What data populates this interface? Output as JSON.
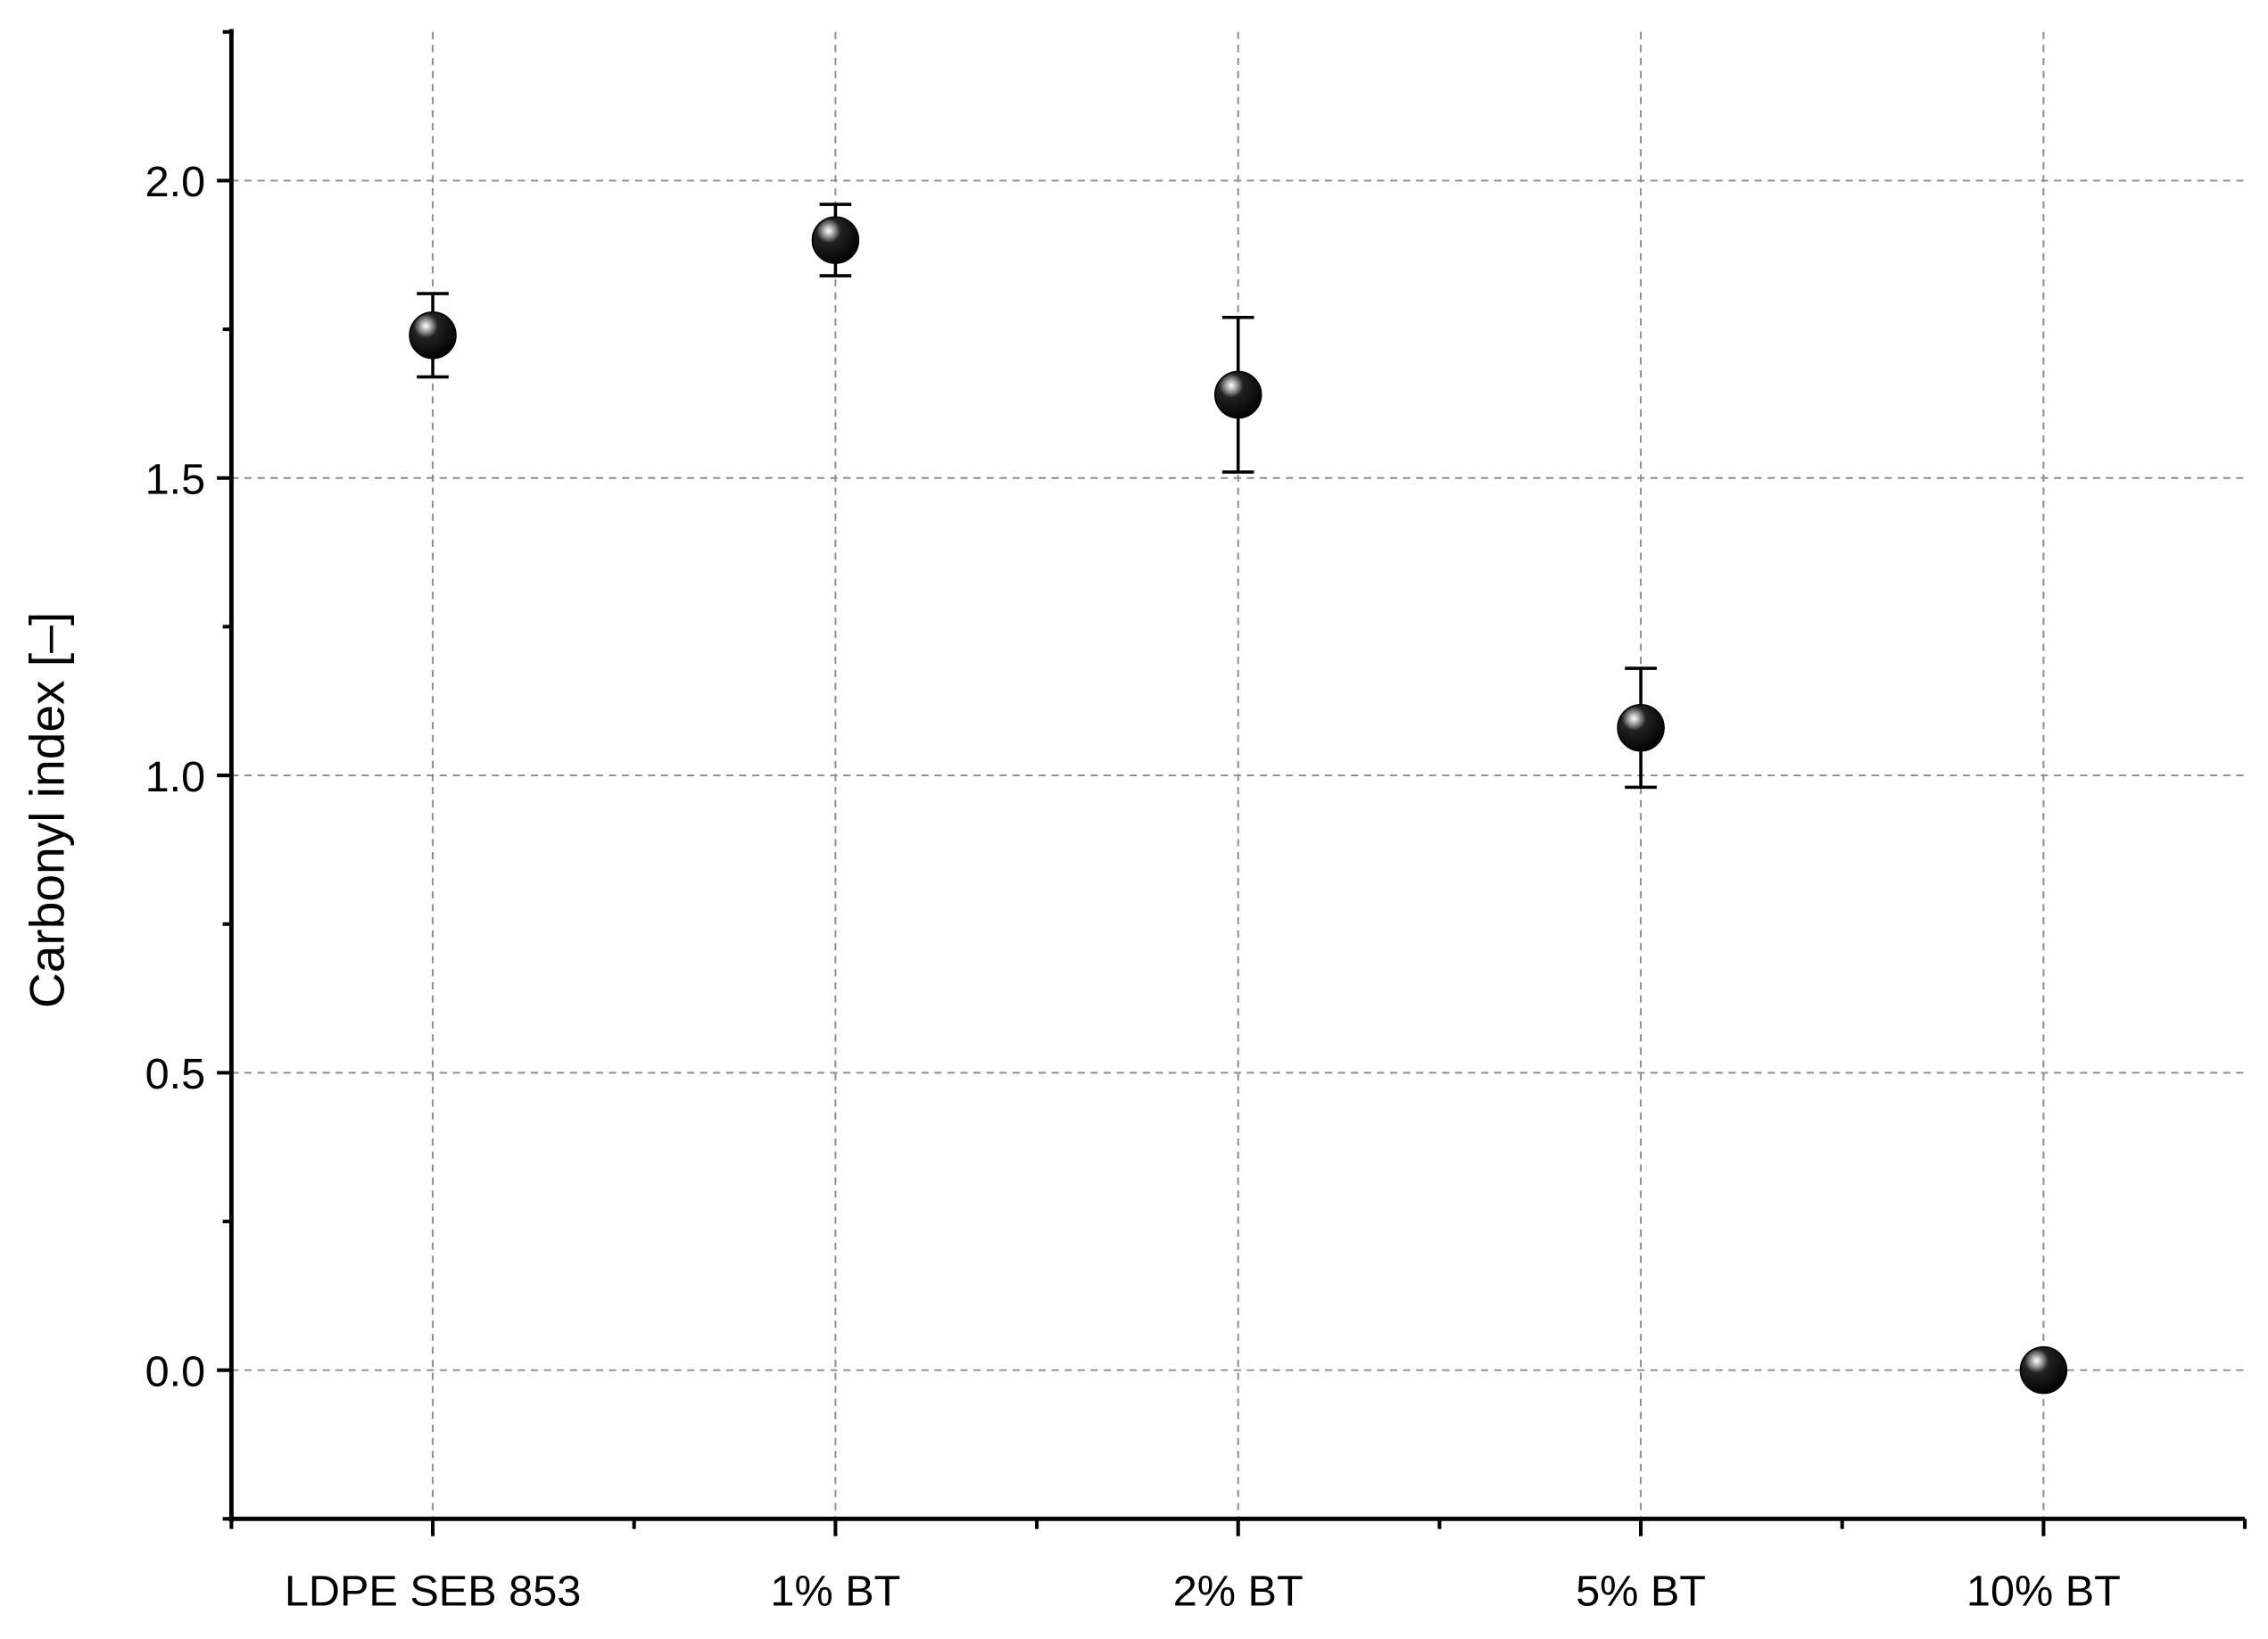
{
  "chart_data": {
    "type": "scatter",
    "y_label": "Carbonyl index [–]",
    "categories": [
      "LDPE SEB 853",
      "1% BT",
      "2% BT",
      "5% BT",
      "10% BT"
    ],
    "values": [
      1.74,
      1.9,
      1.64,
      1.08,
      0
    ],
    "errors": [
      0.07,
      0.06,
      0.13,
      0.1,
      0
    ],
    "color": "#000000",
    "ylim": [
      -0.25,
      2.25
    ],
    "yticks": [
      {
        "value": 0,
        "label": "0.0"
      },
      0.5,
      {
        "value": 1,
        "label": "1.0"
      },
      1.5,
      {
        "value": 2,
        "label": "2.0"
      }
    ],
    "yminorticks": [
      -0.25,
      0.25,
      0.75,
      1.25,
      1.75,
      2.25
    ],
    "grid": true
  }
}
